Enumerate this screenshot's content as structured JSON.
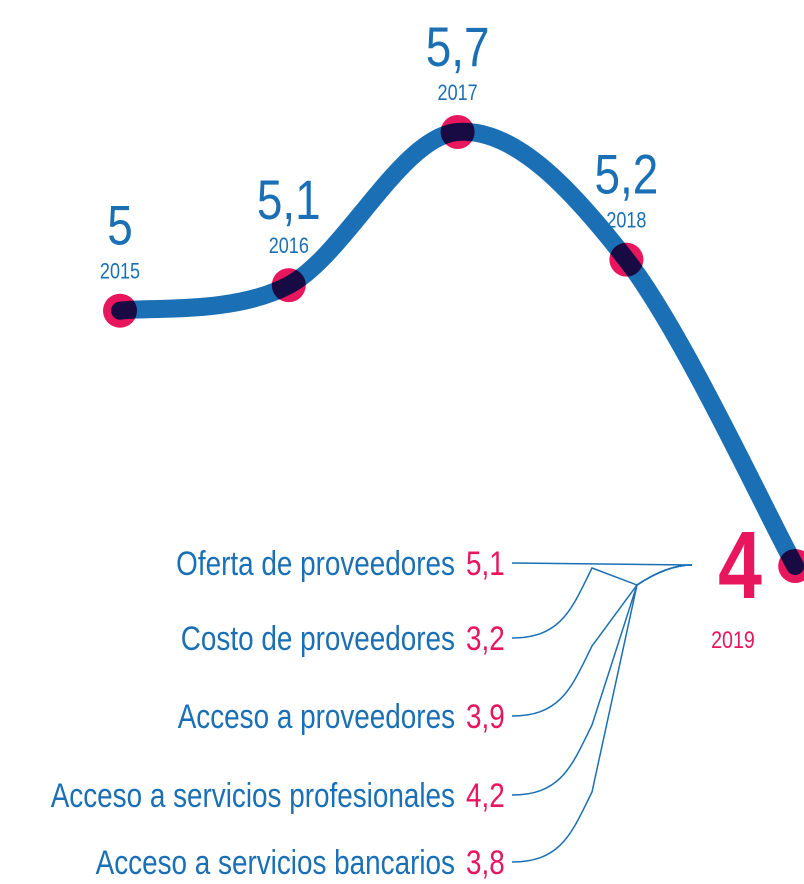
{
  "chart_data": {
    "type": "line",
    "x": [
      "2015",
      "2016",
      "2017",
      "2018",
      "2019"
    ],
    "values": [
      5,
      5.1,
      5.7,
      5.2,
      4
    ],
    "value_labels": [
      "5",
      "5,1",
      "5,7",
      "5,2",
      "4"
    ],
    "color": "#1a6fb5",
    "marker_color": "#e8175d"
  },
  "breakdown": {
    "categories": [
      "Oferta de proveedores",
      "Costo de proveedores",
      "Acceso a proveedores",
      "Acceso a servicios profesionales",
      "Acceso a servicios bancarios"
    ],
    "values": [
      5.1,
      3.2,
      3.9,
      4.2,
      3.8
    ],
    "value_labels": [
      "5,1",
      "3,2",
      "3,9",
      "4,2",
      "3,8"
    ]
  }
}
